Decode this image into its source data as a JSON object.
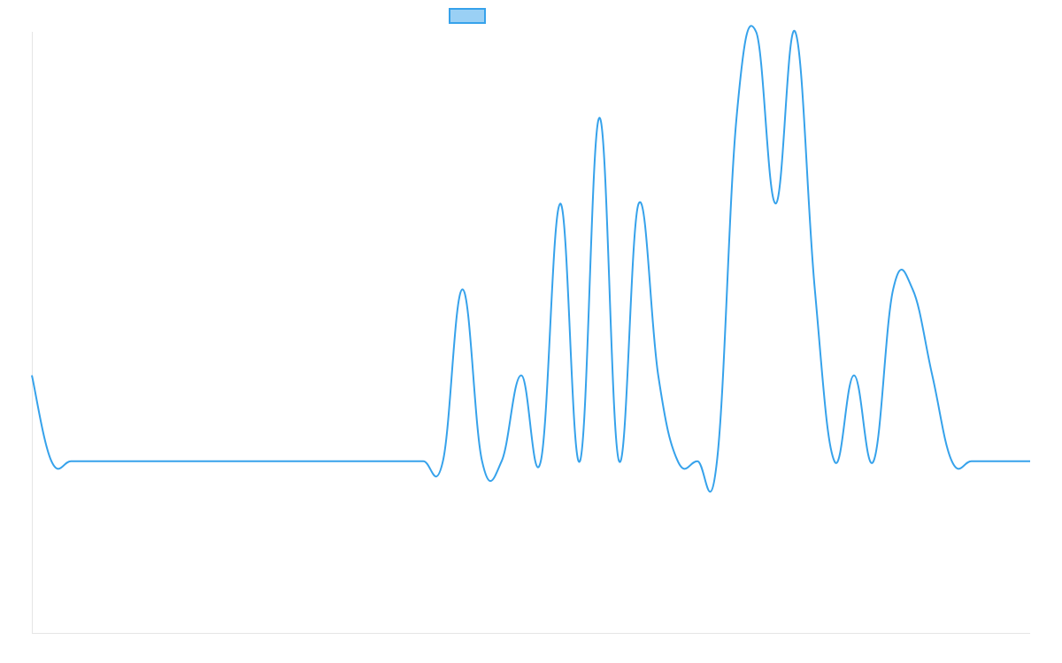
{
  "colors": {
    "series_line": "#36a2eb",
    "legend_fill": "#9ad0f5",
    "axis": "#e5e5e5",
    "background": "#ffffff"
  },
  "legend": {
    "placement": "top-center",
    "label": ""
  },
  "chart_data": {
    "type": "line",
    "title": "",
    "xlabel": "",
    "ylabel": "",
    "grid": false,
    "ylim": [
      -2,
      5
    ],
    "x": [
      0,
      1,
      2,
      3,
      4,
      5,
      6,
      7,
      8,
      9,
      10,
      11,
      12,
      13,
      14,
      15,
      16,
      17,
      18,
      19,
      20,
      21,
      22,
      23,
      24,
      25,
      26,
      27,
      28,
      29,
      30,
      31,
      32,
      33,
      34,
      35,
      36,
      37,
      38,
      39,
      40,
      41,
      42,
      43,
      44,
      45,
      46,
      47,
      48,
      49,
      50,
      51
    ],
    "series": [
      {
        "name": "",
        "values": [
          1,
          0,
          0,
          0,
          0,
          0,
          0,
          0,
          0,
          0,
          0,
          0,
          0,
          0,
          0,
          0,
          0,
          0,
          0,
          0,
          0,
          0,
          2,
          0,
          0,
          1,
          0,
          3,
          0,
          4,
          0,
          3,
          1,
          0,
          0,
          0,
          4,
          5,
          3,
          5,
          2,
          0,
          1,
          0,
          2,
          2,
          1,
          0,
          0,
          0,
          0,
          0
        ]
      }
    ]
  }
}
